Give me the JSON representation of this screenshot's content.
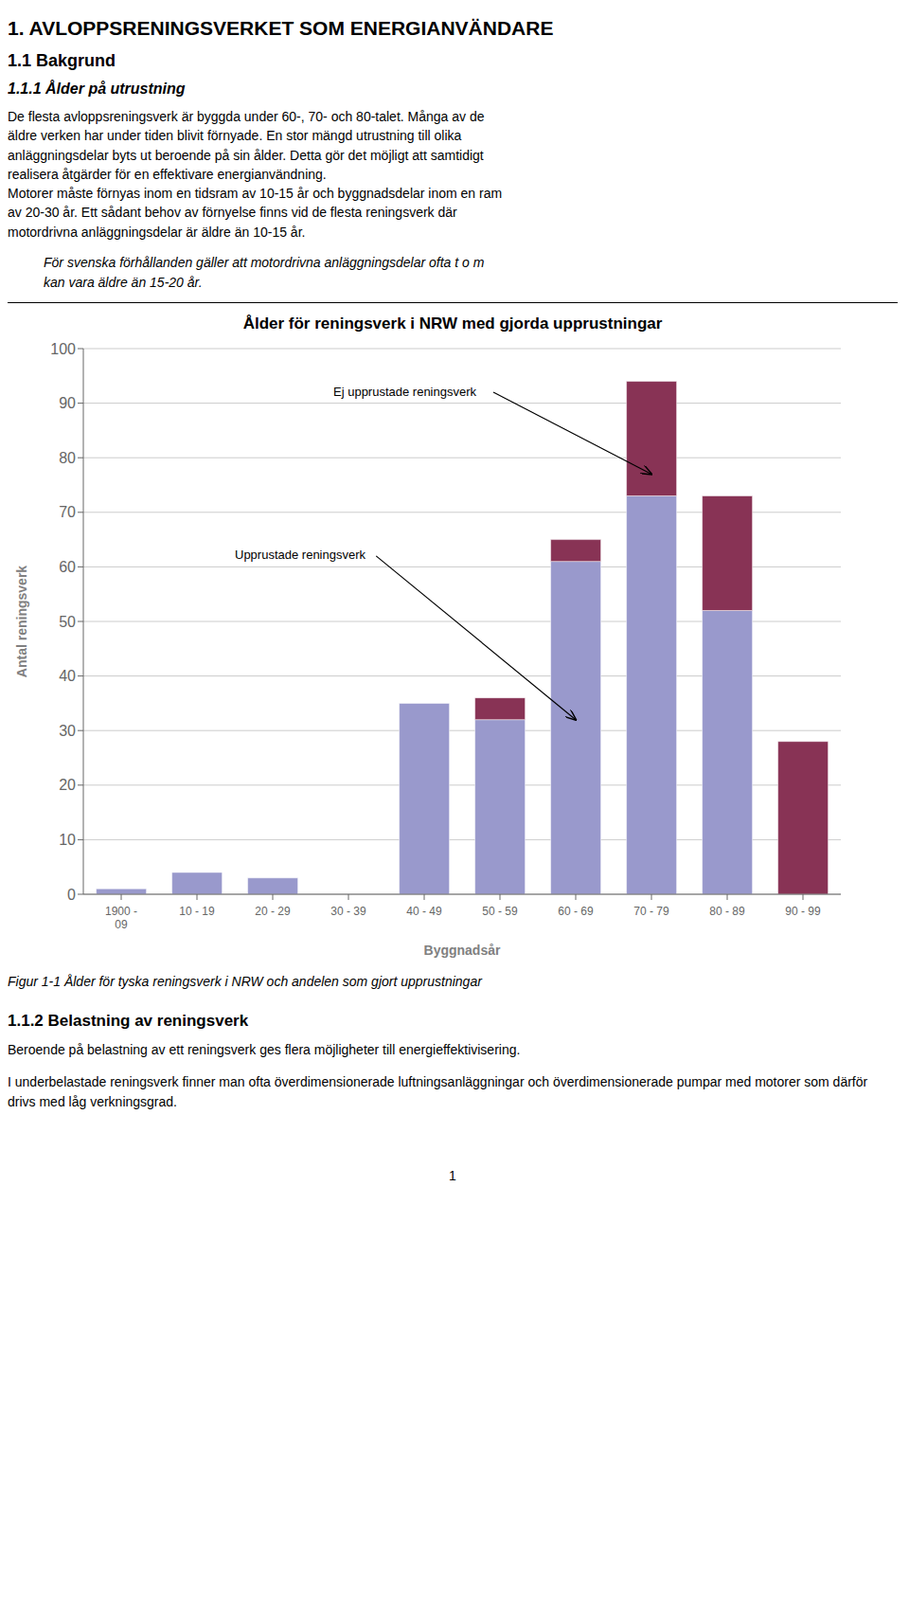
{
  "chart_data": {
    "type": "bar",
    "title": "Ålder för reningsverk i NRW med gjorda upprustningar",
    "x_label": "Byggnadsår",
    "y_label": "Antal reningsverk",
    "categories": [
      "1900 -\n09",
      "10 - 19",
      "20 - 29",
      "30 - 39",
      "40 - 49",
      "50 - 59",
      "60 - 69",
      "70 - 79",
      "80 - 89",
      "90 - 99"
    ],
    "series": [
      {
        "name": "Upprustade reningsverk",
        "color": "#9999cc",
        "values": [
          1,
          4,
          3,
          0,
          35,
          32,
          61,
          73,
          52,
          0
        ]
      },
      {
        "name": "Ej upprustade reningsverk",
        "color": "#883355",
        "values": [
          0,
          0,
          0,
          0,
          0,
          4,
          4,
          21,
          21,
          28
        ]
      }
    ],
    "stacked": true,
    "ylim": [
      0,
      100
    ],
    "yticks": [
      0,
      10,
      20,
      30,
      40,
      50,
      60,
      70,
      80,
      90,
      100
    ],
    "grid": true
  },
  "page_texts": {
    "page_title": "1. AVLOPPSRENINGSVERKET SOM ENERGIANVÄNDARE",
    "section1": "1.1 Bakgrund",
    "section1_1": "1.1.1 Ålder på utrustning",
    "para1": "De flesta avloppsreningsverk är byggda under 60-, 70- och 80-talet. Många av de\näldre verken har under tiden blivit förnyade. En stor mängd utrustning till olika\nanläggningsdelar byts ut beroende på sin ålder. Detta gör det möjligt att samtidigt\nrealisera åtgärder för en effektivare energianvändning.\nMotorer måste förnyas inom en tidsram av 10-15 år och byggnadsdelar inom en ram\nav 20-30 år. Ett sådant behov av förnyelse finns vid de flesta reningsverk där\nmotordrivna anläggningsdelar är äldre än 10-15 år.",
    "italic_para": "För svenska förhållanden gäller att motordrivna anläggningsdelar ofta t o m\nkan vara äldre än 15-20 år.",
    "fig_caption": "Figur 1-1 Ålder för tyska reningsverk i NRW och andelen som gjort upprustningar",
    "section1_2": "1.1.2 Belastning av reningsverk",
    "para2": "Beroende på belastning av ett reningsverk ges flera möjligheter till energieffektivisering.",
    "para3": "I underbelastade reningsverk finner man ofta överdimensionerade luftningsanläggningar och överdimensionerade pumpar med motorer som därför drivs med låg verkningsgrad.",
    "page_num": "1"
  }
}
